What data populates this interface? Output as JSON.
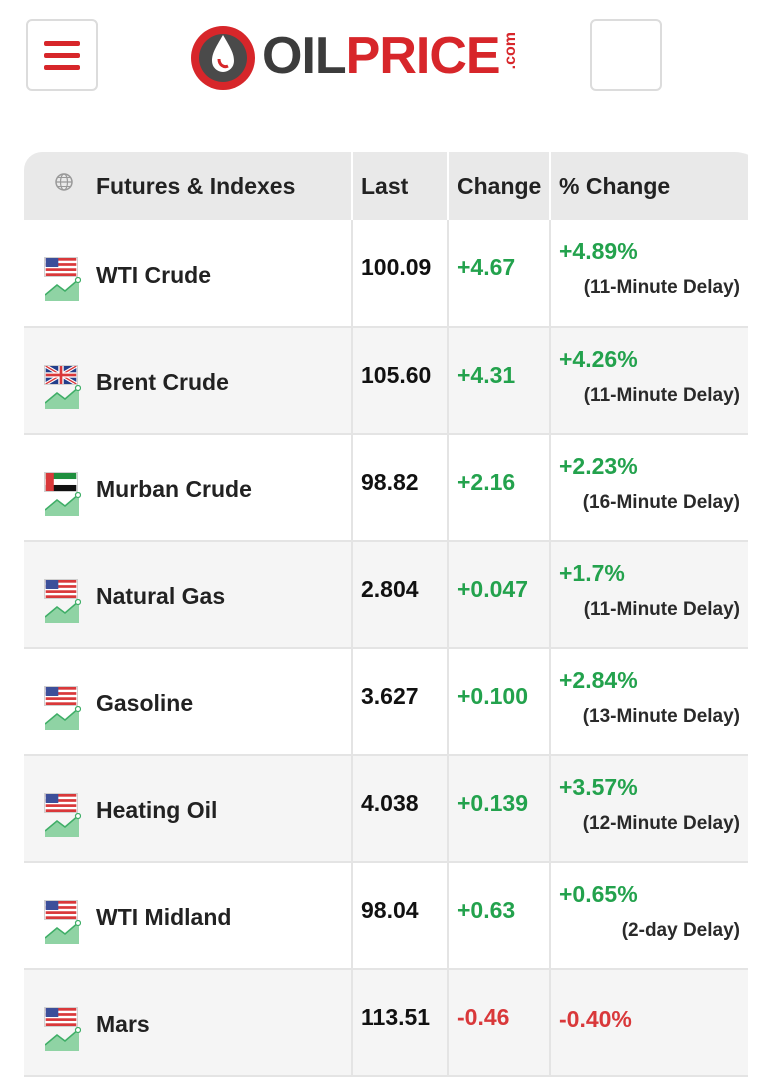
{
  "header": {
    "logo_oil": "OIL",
    "logo_price": "PRICE",
    "logo_com": ".com",
    "menu_icon": "hamburger-icon"
  },
  "table": {
    "columns": [
      "Futures & Indexes",
      "Last",
      "Change",
      "% Change"
    ],
    "rows": [
      {
        "name": "WTI Crude",
        "flag": "us",
        "last": "100.09",
        "change": "+4.67",
        "pct": "+4.89%",
        "delay": "(11-Minute Delay)",
        "dir": "pos"
      },
      {
        "name": "Brent Crude",
        "flag": "uk",
        "last": "105.60",
        "change": "+4.31",
        "pct": "+4.26%",
        "delay": "(11-Minute Delay)",
        "dir": "pos"
      },
      {
        "name": "Murban Crude",
        "flag": "uae",
        "last": "98.82",
        "change": "+2.16",
        "pct": "+2.23%",
        "delay": "(16-Minute Delay)",
        "dir": "pos"
      },
      {
        "name": "Natural Gas",
        "flag": "us",
        "last": "2.804",
        "change": "+0.047",
        "pct": "+1.7%",
        "delay": "(11-Minute Delay)",
        "dir": "pos"
      },
      {
        "name": "Gasoline",
        "flag": "us",
        "last": "3.627",
        "change": "+0.100",
        "pct": "+2.84%",
        "delay": "(13-Minute Delay)",
        "dir": "pos"
      },
      {
        "name": "Heating Oil",
        "flag": "us",
        "last": "4.038",
        "change": "+0.139",
        "pct": "+3.57%",
        "delay": "(12-Minute Delay)",
        "dir": "pos"
      },
      {
        "name": "WTI Midland",
        "flag": "us",
        "last": "98.04",
        "change": "+0.63",
        "pct": "+0.65%",
        "delay": "(2-day Delay)",
        "dir": "pos"
      },
      {
        "name": "Mars",
        "flag": "us",
        "last": "113.51",
        "change": "-0.46",
        "pct": "-0.40%",
        "delay": "",
        "dir": "neg"
      }
    ]
  },
  "colors": {
    "positive": "#23a24d",
    "negative": "#d9383a",
    "brand": "#d7262a"
  }
}
